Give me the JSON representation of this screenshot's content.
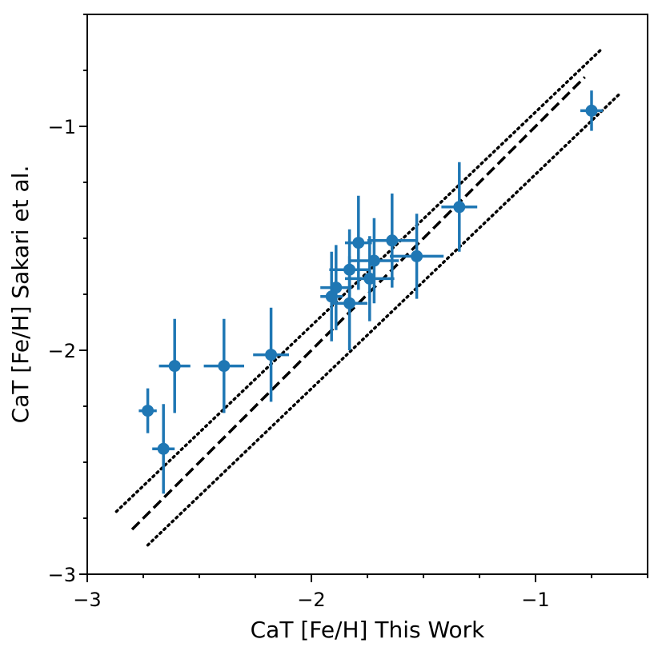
{
  "chart_data": {
    "type": "scatter",
    "title": "",
    "xlabel": "CaT [Fe/H] This Work",
    "ylabel": "CaT [Fe/H] Sakari et al.",
    "xlim": [
      -3.0,
      -0.5
    ],
    "ylim": [
      -3.0,
      -0.5
    ],
    "xticks": [
      {
        "value": -3,
        "label": "−3"
      },
      {
        "value": -2,
        "label": "−2"
      },
      {
        "value": -1,
        "label": "−1"
      }
    ],
    "yticks": [
      {
        "value": -3,
        "label": "−3"
      },
      {
        "value": -2,
        "label": "−2"
      },
      {
        "value": -1,
        "label": "−1"
      }
    ],
    "grid": false,
    "marker_color": "#1f77b4",
    "lines": [
      {
        "name": "one-to-one",
        "style": "dashed",
        "x": [
          -2.8,
          -0.78
        ],
        "y": [
          -2.8,
          -0.78
        ]
      },
      {
        "name": "upper-offset",
        "style": "dotted",
        "x": [
          -2.87,
          -0.7
        ],
        "y": [
          -2.72,
          -0.65
        ]
      },
      {
        "name": "lower-offset",
        "style": "dotted",
        "x": [
          -2.73,
          -0.63
        ],
        "y": [
          -2.87,
          -0.86
        ]
      }
    ],
    "points": [
      {
        "x": -0.75,
        "y": -0.93,
        "xerr": 0.05,
        "yerr": 0.09
      },
      {
        "x": -1.34,
        "y": -1.36,
        "xerr": 0.08,
        "yerr": 0.2
      },
      {
        "x": -1.53,
        "y": -1.58,
        "xerr": 0.12,
        "yerr": 0.19
      },
      {
        "x": -1.64,
        "y": -1.51,
        "xerr": 0.11,
        "yerr": 0.21
      },
      {
        "x": -1.72,
        "y": -1.6,
        "xerr": 0.11,
        "yerr": 0.19
      },
      {
        "x": -1.74,
        "y": -1.68,
        "xerr": 0.11,
        "yerr": 0.19
      },
      {
        "x": -1.79,
        "y": -1.52,
        "xerr": 0.06,
        "yerr": 0.21
      },
      {
        "x": -1.83,
        "y": -1.64,
        "xerr": 0.09,
        "yerr": 0.18
      },
      {
        "x": -1.83,
        "y": -1.79,
        "xerr": 0.08,
        "yerr": 0.21
      },
      {
        "x": -1.89,
        "y": -1.72,
        "xerr": 0.07,
        "yerr": 0.19
      },
      {
        "x": -1.91,
        "y": -1.76,
        "xerr": 0.05,
        "yerr": 0.2
      },
      {
        "x": -2.18,
        "y": -2.02,
        "xerr": 0.08,
        "yerr": 0.21
      },
      {
        "x": -2.39,
        "y": -2.07,
        "xerr": 0.09,
        "yerr": 0.21
      },
      {
        "x": -2.61,
        "y": -2.07,
        "xerr": 0.07,
        "yerr": 0.21
      },
      {
        "x": -2.66,
        "y": -2.44,
        "xerr": 0.05,
        "yerr": 0.2
      },
      {
        "x": -2.73,
        "y": -2.27,
        "xerr": 0.04,
        "yerr": 0.1
      }
    ]
  }
}
